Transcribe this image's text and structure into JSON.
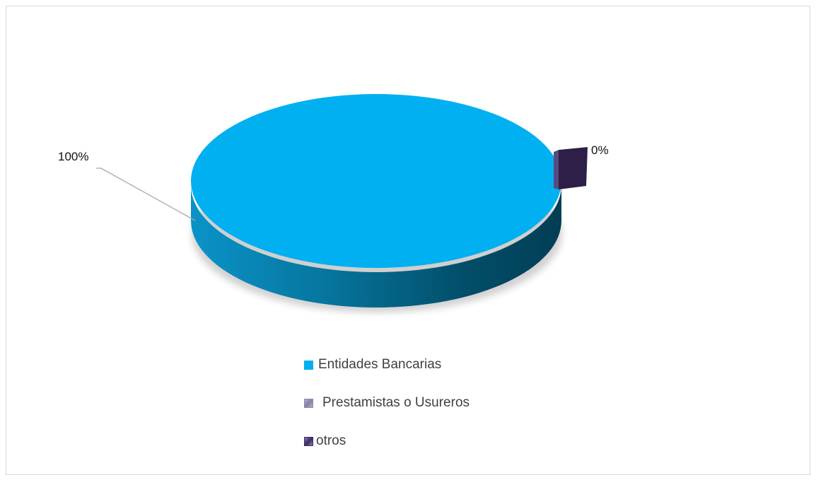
{
  "chart_data": {
    "type": "pie",
    "title": "",
    "slices": [
      {
        "name": "Entidades Bancarias",
        "value": 100,
        "label": "100%",
        "color": "#00b0f0"
      },
      {
        "name": "Prestamistas o Usureros",
        "value": 0,
        "label": "",
        "color": "#8a7fa8"
      },
      {
        "name": "otros",
        "value": 0,
        "label": "0%",
        "color": "#3b2a5a"
      }
    ],
    "legend_position": "bottom"
  }
}
